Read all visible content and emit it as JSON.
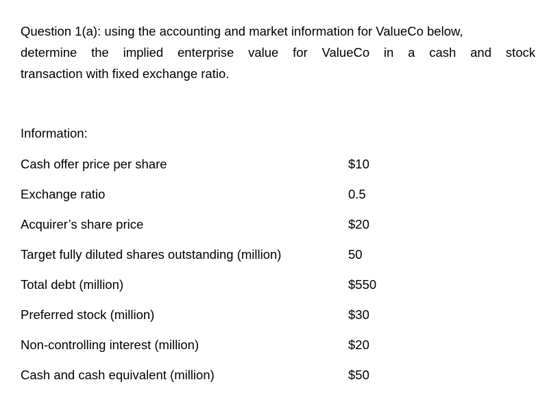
{
  "question": {
    "lines": [
      "Question 1(a): using the accounting and market information for ValueCo below,",
      "determine the implied enterprise value for ValueCo in a cash and stock",
      "transaction with fixed exchange ratio."
    ]
  },
  "information": {
    "heading": "Information:",
    "rows": [
      [
        "Cash offer price per share",
        "$10"
      ],
      [
        "Exchange ratio",
        "0.5"
      ],
      [
        "Acquirer’s share price",
        "$20"
      ],
      [
        "Target fully diluted shares outstanding (million)",
        "50"
      ],
      [
        "Total debt (million)",
        "$550"
      ],
      [
        "Preferred stock (million)",
        "$30"
      ],
      [
        "Non-controlling interest (million)",
        "$20"
      ],
      [
        "Cash and cash equivalent (million)",
        "$50"
      ]
    ]
  }
}
